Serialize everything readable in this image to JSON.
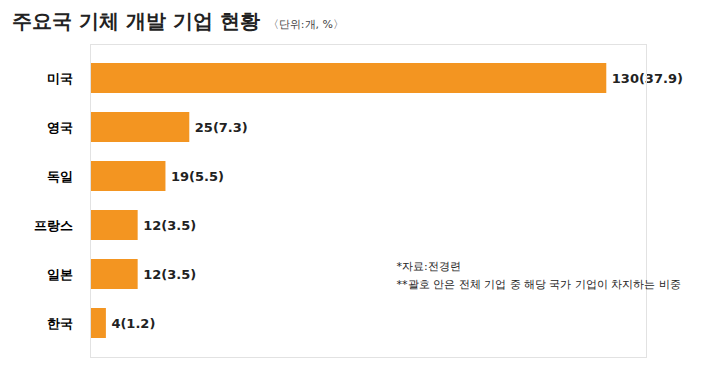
{
  "chart_data": {
    "type": "bar",
    "title": "주요국 기체 개발 기업 현황",
    "subtitle": "〈단위:개, %〉",
    "orientation": "horizontal",
    "categories": [
      "미국",
      "영국",
      "독일",
      "프랑스",
      "일본",
      "한국"
    ],
    "values": [
      130,
      25,
      19,
      12,
      12,
      4
    ],
    "value_labels": [
      "130(37.9)",
      "25(7.3)",
      "19(5.5)",
      "12(3.5)",
      "12(3.5)",
      "4(1.2)"
    ],
    "data_labels": true,
    "color": "#f39521",
    "xlim": [
      0,
      140
    ],
    "xticks": [],
    "tick_labels": "y",
    "grid": false,
    "notes": [
      "*자료:전경련",
      "**괄호 안은 전체 기업 중 해당 국가 기업이 차지하는 비중"
    ]
  }
}
